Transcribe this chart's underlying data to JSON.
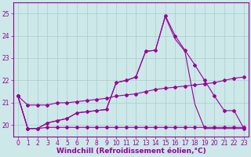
{
  "bg_color": "#cce8e8",
  "line_color": "#990099",
  "grid_color": "#aacccc",
  "xlabel": "Windchill (Refroidissement éolien,°C)",
  "xlabel_color": "#990099",
  "xlabel_fontsize": 6.5,
  "tick_fontsize": 5.5,
  "tick_color": "#990099",
  "xlim": [
    -0.5,
    23.5
  ],
  "ylim": [
    19.5,
    25.5
  ],
  "yticks": [
    20,
    21,
    22,
    23,
    24,
    25
  ],
  "xticks": [
    0,
    1,
    2,
    3,
    4,
    5,
    6,
    7,
    8,
    9,
    10,
    11,
    12,
    13,
    14,
    15,
    16,
    17,
    18,
    19,
    20,
    21,
    22,
    23
  ],
  "lines": [
    {
      "x": [
        0,
        1,
        2,
        3,
        4,
        5,
        6,
        7,
        8,
        9,
        10,
        11,
        12,
        13,
        14,
        15,
        16,
        17,
        18,
        19,
        20,
        21,
        22,
        23
      ],
      "y": [
        21.3,
        20.9,
        20.9,
        20.9,
        21.0,
        21.0,
        21.05,
        21.1,
        21.15,
        21.2,
        21.3,
        21.35,
        21.4,
        21.5,
        21.6,
        21.65,
        21.7,
        21.75,
        21.8,
        21.85,
        21.9,
        22.0,
        22.1,
        22.15
      ],
      "marker": "D",
      "markersize": 2.0,
      "linewidth": 0.8
    },
    {
      "x": [
        0,
        1,
        2,
        3,
        4,
        5,
        6,
        7,
        8,
        9,
        10,
        11,
        12,
        13,
        14,
        15,
        16,
        17,
        18,
        19,
        20,
        21,
        22,
        23
      ],
      "y": [
        21.3,
        19.85,
        19.85,
        20.1,
        20.2,
        20.3,
        20.55,
        20.6,
        20.65,
        20.7,
        21.9,
        22.0,
        22.15,
        23.3,
        23.35,
        24.9,
        24.0,
        23.35,
        22.7,
        22.0,
        21.3,
        20.65,
        20.65,
        19.85
      ],
      "marker": "D",
      "markersize": 2.0,
      "linewidth": 0.8
    },
    {
      "x": [
        0,
        1,
        2,
        3,
        4,
        5,
        6,
        7,
        8,
        9,
        10,
        11,
        12,
        13,
        14,
        15,
        16,
        17,
        18,
        19,
        20,
        21,
        22,
        23
      ],
      "y": [
        21.3,
        19.85,
        19.85,
        20.1,
        20.2,
        20.3,
        20.55,
        20.6,
        20.65,
        20.7,
        21.9,
        22.0,
        22.15,
        23.3,
        23.35,
        24.85,
        23.85,
        23.3,
        20.95,
        19.85,
        19.85,
        19.85,
        19.85,
        19.85
      ],
      "marker": null,
      "markersize": 0,
      "linewidth": 0.8
    },
    {
      "x": [
        0,
        1,
        2,
        3,
        4,
        5,
        6,
        7,
        8,
        9,
        10,
        11,
        12,
        13,
        14,
        15,
        16,
        17,
        18,
        19,
        20,
        21,
        22,
        23
      ],
      "y": [
        21.3,
        19.85,
        19.85,
        19.9,
        19.9,
        19.9,
        19.9,
        19.9,
        19.9,
        19.9,
        19.9,
        19.9,
        19.9,
        19.9,
        19.9,
        19.9,
        19.9,
        19.9,
        19.9,
        19.9,
        19.9,
        19.9,
        19.9,
        19.9
      ],
      "marker": "D",
      "markersize": 2.0,
      "linewidth": 0.8
    }
  ]
}
